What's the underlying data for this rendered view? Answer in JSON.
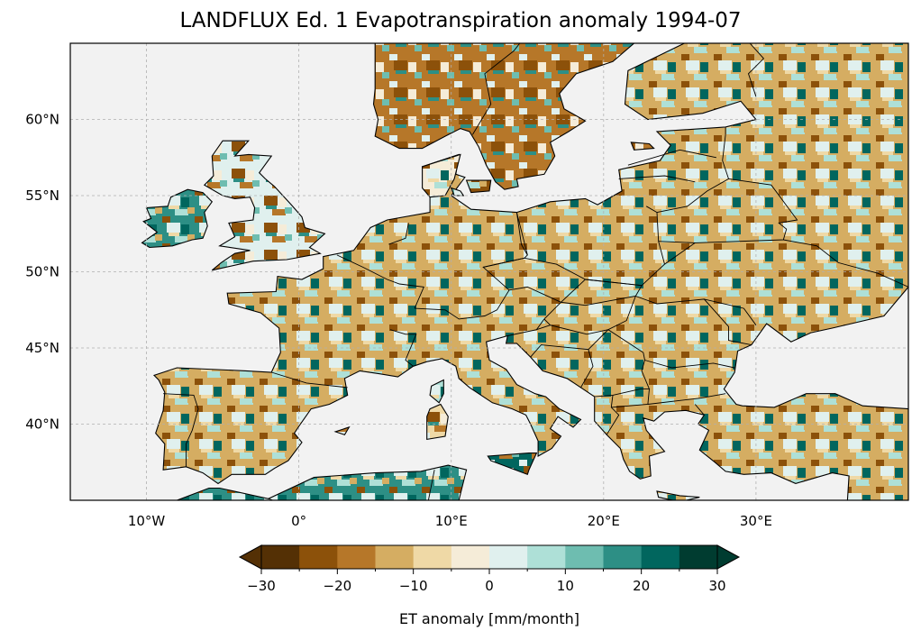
{
  "title": "LANDFLUX Ed. 1 Evapotranspiration anomaly 1994-07",
  "map": {
    "lon_range": [
      -15,
      40
    ],
    "lat_range": [
      35,
      65
    ],
    "lon_ticks": [
      {
        "value": -10,
        "label": "10°W"
      },
      {
        "value": 0,
        "label": "0°"
      },
      {
        "value": 10,
        "label": "10°E"
      },
      {
        "value": 20,
        "label": "20°E"
      },
      {
        "value": 30,
        "label": "30°E"
      }
    ],
    "lat_ticks": [
      {
        "value": 40,
        "label": "40°N"
      },
      {
        "value": 45,
        "label": "45°N"
      },
      {
        "value": 50,
        "label": "50°N"
      },
      {
        "value": 55,
        "label": "55°N"
      },
      {
        "value": 60,
        "label": "60°N"
      }
    ],
    "gridlines": true,
    "colors": {
      "ocean": "#f2f2f2",
      "coast": "#000000",
      "grid": "#b0b0b0"
    }
  },
  "colorbar": {
    "label": "ET anomaly [mm/month]",
    "boundaries": [
      -30,
      -25,
      -20,
      -15,
      -10,
      -5,
      0,
      5,
      10,
      15,
      20,
      25,
      30
    ],
    "tick_values": [
      -30,
      -20,
      -10,
      0,
      10,
      20,
      30
    ],
    "tick_labels": [
      "−30",
      "−20",
      "−10",
      "0",
      "10",
      "20",
      "30"
    ],
    "colors": [
      "#543005",
      "#8c510a",
      "#b67729",
      "#d5ad62",
      "#efd9a6",
      "#f5ecd8",
      "#e0f0ee",
      "#aee0d7",
      "#6ebdb0",
      "#2d8f85",
      "#01665e",
      "#003c30"
    ],
    "extend": "both"
  }
}
